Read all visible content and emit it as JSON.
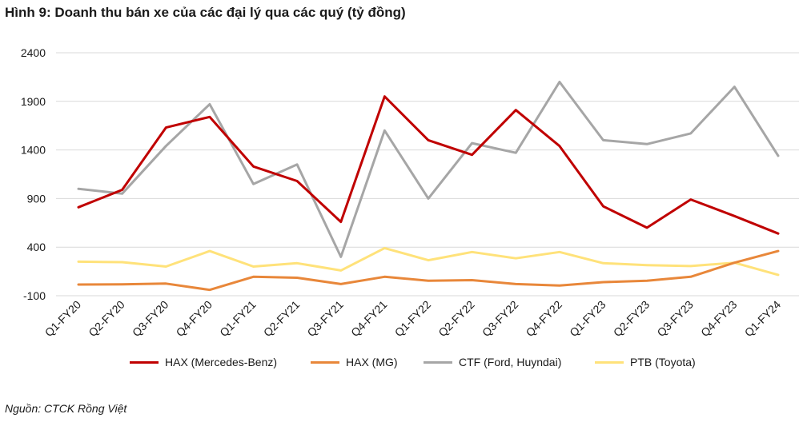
{
  "title": "Hình 9: Doanh thu bán xe của các đại lý qua các quý (tỷ đồng)",
  "source": "Nguồn: CTCK Rồng Việt",
  "chart_data": {
    "type": "line",
    "categories": [
      "Q1-FY20",
      "Q2-FY20",
      "Q3-FY20",
      "Q4-FY20",
      "Q1-FY21",
      "Q2-FY21",
      "Q3-FY21",
      "Q4-FY21",
      "Q1-FY22",
      "Q2-FY22",
      "Q3-FY22",
      "Q4-FY22",
      "Q1-FY23",
      "Q2-FY23",
      "Q3-FY23",
      "Q4-FY23",
      "Q1-FY24"
    ],
    "yticks": [
      "2400",
      "1900",
      "1400",
      "900",
      "400",
      "-100"
    ],
    "ylim": [
      -100,
      2400
    ],
    "grid": true,
    "legend_position": "bottom",
    "series": [
      {
        "name": "HAX (Mercedes-Benz)",
        "color": "#c00000",
        "values": [
          810,
          990,
          1630,
          1740,
          1230,
          1080,
          660,
          1950,
          1500,
          1350,
          1810,
          1440,
          820,
          600,
          890,
          720,
          540
        ]
      },
      {
        "name": "HAX (MG)",
        "color": "#e8873a",
        "values": [
          15,
          18,
          25,
          -40,
          95,
          85,
          20,
          95,
          55,
          60,
          20,
          5,
          40,
          55,
          95,
          240,
          360
        ]
      },
      {
        "name": "CTF (Ford, Huyndai)",
        "color": "#a6a6a6",
        "values": [
          1000,
          950,
          1440,
          1870,
          1050,
          1250,
          300,
          1600,
          900,
          1470,
          1370,
          2100,
          1500,
          1460,
          1570,
          2050,
          1340
        ]
      },
      {
        "name": "PTB (Toyota)",
        "color": "#ffe27a",
        "values": [
          250,
          245,
          200,
          360,
          200,
          235,
          160,
          390,
          265,
          350,
          285,
          350,
          235,
          215,
          205,
          240,
          115
        ]
      }
    ]
  }
}
